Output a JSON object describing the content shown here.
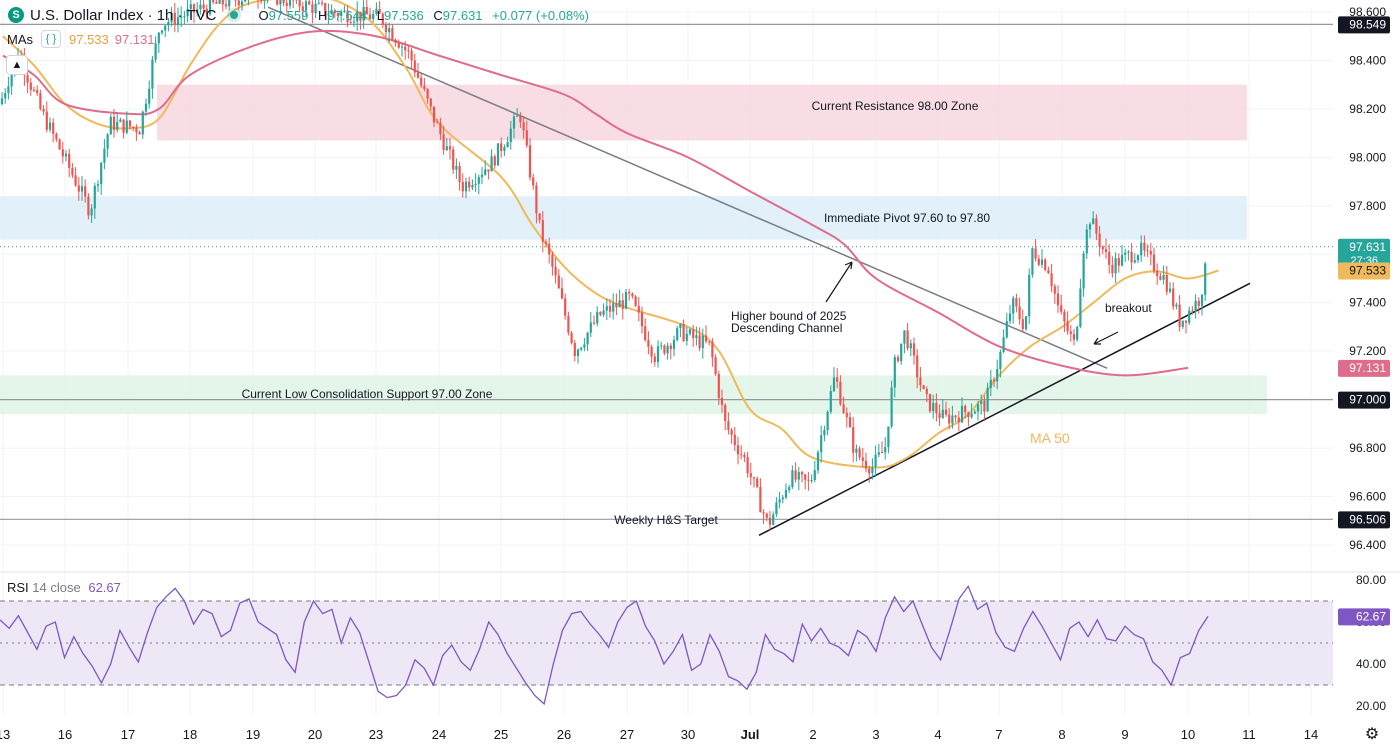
{
  "header": {
    "symbol_icon": "S",
    "title": "U.S. Dollar Index · 1h · TVC",
    "o_label": "O",
    "o_value": "97.559",
    "h_label": "H",
    "h_value": "97.644",
    "l_label": "L",
    "l_value": "97.536",
    "c_label": "C",
    "c_value": "97.631",
    "change": "+0.077 (+0.08%)"
  },
  "mas_legend": {
    "label": "MAs",
    "eye_icon": "eye-icon",
    "ma50_value": "97.533",
    "ma200_value": "97.131"
  },
  "collapse_icon": "chevron-up-icon",
  "rsi_legend": {
    "label": "RSI",
    "params": "14 close",
    "value": "62.67"
  },
  "settings_icon": "gear-icon",
  "colors": {
    "up": "#26a69a",
    "down": "#ef5350",
    "ma50": "#f0b95b",
    "ma200": "#e06c8c",
    "rsi": "#7e57c2",
    "trend": "#131722",
    "channel": "#787b86",
    "resistance_zone": "#f8d7df",
    "pivot_zone": "#dcedf8",
    "support_zone": "#dff3e6",
    "rsi_band": "#ede7f6",
    "label_dark": "#131722",
    "price_label": "#26a69a"
  },
  "chart_data": [
    {
      "type": "candlestick",
      "title": "U.S. Dollar Index · 1h · TVC",
      "x_tick_labels": [
        "13",
        "16",
        "17",
        "18",
        "19",
        "20",
        "23",
        "24",
        "25",
        "26",
        "27",
        "30",
        "Jul",
        "2",
        "3",
        "4",
        "7",
        "8",
        "9",
        "10",
        "11",
        "14"
      ],
      "y_tick_labels": [
        "96.400",
        "96.600",
        "96.800",
        "97.000",
        "97.200",
        "97.400",
        "97.600",
        "97.800",
        "98.000",
        "98.200",
        "98.400",
        "98.600"
      ],
      "ylim": [
        96.32,
        98.63
      ],
      "grid": true,
      "price_labels": [
        {
          "value": 98.549,
          "text": "98.549",
          "kind": "level"
        },
        {
          "value": 97.631,
          "text": "97.631",
          "countdown": "27:36",
          "kind": "last"
        },
        {
          "value": 97.533,
          "text": "97.533",
          "kind": "ma50"
        },
        {
          "value": 97.131,
          "text": "97.131",
          "kind": "ma200"
        },
        {
          "value": 97.0,
          "text": "97.000",
          "kind": "level"
        },
        {
          "value": 96.506,
          "text": "96.506",
          "kind": "level"
        }
      ],
      "horizontal_lines": [
        98.549,
        97.0,
        96.506
      ],
      "zones": [
        {
          "label": "Current Resistance 98.00 Zone",
          "from": 98.07,
          "to": 98.3,
          "x_from": "Jun 17",
          "x_to": "Jul 10",
          "color": "resistance_zone"
        },
        {
          "label": "Immediate Pivot 97.60 to 97.80",
          "from": 97.66,
          "to": 97.84,
          "x_from": "Jun 13",
          "x_to": "Jul 10",
          "color": "pivot_zone"
        },
        {
          "label": "Current Low Consolidation Support 97.00 Zone",
          "from": 96.94,
          "to": 97.1,
          "x_from": "Jun 13",
          "x_to": "Jul 11",
          "color": "support_zone"
        }
      ],
      "annotations": [
        {
          "text": "Weekly H&S Target",
          "value": 96.506,
          "anchor": "Jun 27"
        },
        {
          "text": "Higher bound of 2025",
          "text2": "Descending Channel",
          "value": 97.36,
          "anchor": "Jul 2"
        },
        {
          "text": "breakout",
          "value": 97.38,
          "anchor": "Jul 9"
        },
        {
          "text": "MA 50",
          "value": 96.84,
          "anchor": "Jul 8",
          "color": "ma50"
        }
      ],
      "trendlines": [
        {
          "name": "descending channel",
          "points": [
            [
              "Jun 18",
              98.62
            ],
            [
              "Jul 8",
              97.13
            ]
          ],
          "color": "channel"
        },
        {
          "name": "rising support",
          "points": [
            [
              "Jul 1",
              96.44
            ],
            [
              "Jul 11",
              97.48
            ]
          ],
          "color": "trend"
        }
      ],
      "series": [
        {
          "name": "MA 50",
          "color": "ma50",
          "points": [
            [
              "Jun 13",
              98.5
            ],
            [
              "Jun 13",
              98.38
            ],
            [
              "Jun 16",
              98.22
            ],
            [
              "Jun 16",
              98.14
            ],
            [
              "Jun 17",
              98.12
            ],
            [
              "Jun 17",
              98.16
            ],
            [
              "Jun 18",
              98.38
            ],
            [
              "Jun 18",
              98.56
            ],
            [
              "Jun 19",
              98.64
            ],
            [
              "Jun 20",
              98.66
            ],
            [
              "Jun 20",
              98.63
            ],
            [
              "Jun 23",
              98.54
            ],
            [
              "Jun 23",
              98.36
            ],
            [
              "Jun 24",
              98.14
            ],
            [
              "Jun 25",
              97.92
            ],
            [
              "Jun 25",
              97.72
            ],
            [
              "Jun 26",
              97.55
            ],
            [
              "Jun 26",
              97.44
            ],
            [
              "Jun 27",
              97.38
            ],
            [
              "Jun 30",
              97.3
            ],
            [
              "Jun 30",
              97.2
            ],
            [
              "Jul 1",
              96.96
            ],
            [
              "Jul 1",
              96.88
            ],
            [
              "Jul 2",
              96.76
            ],
            [
              "Jul 3",
              96.72
            ],
            [
              "Jul 3",
              96.76
            ],
            [
              "Jul 4",
              96.86
            ],
            [
              "Jul 4",
              96.94
            ],
            [
              "Jul 7",
              97.1
            ],
            [
              "Jul 7",
              97.22
            ],
            [
              "Jul 8",
              97.3
            ],
            [
              "Jul 8",
              97.4
            ],
            [
              "Jul 9",
              97.5
            ],
            [
              "Jul 9",
              97.53
            ],
            [
              "Jul 10",
              97.5
            ],
            [
              "Jul 10",
              97.533
            ]
          ]
        },
        {
          "name": "MA 200",
          "color": "ma200",
          "points": [
            [
              "Jun 13",
              98.42
            ],
            [
              "Jun 13",
              98.34
            ],
            [
              "Jun 16",
              98.22
            ],
            [
              "Jun 17",
              98.18
            ],
            [
              "Jun 17",
              98.2
            ],
            [
              "Jun 18",
              98.34
            ],
            [
              "Jun 19",
              98.46
            ],
            [
              "Jun 20",
              98.52
            ],
            [
              "Jun 23",
              98.5
            ],
            [
              "Jun 24",
              98.42
            ],
            [
              "Jun 25",
              98.34
            ],
            [
              "Jun 26",
              98.26
            ],
            [
              "Jun 26",
              98.18
            ],
            [
              "Jun 27",
              98.1
            ],
            [
              "Jun 30",
              98.0
            ],
            [
              "Jul 1",
              97.86
            ],
            [
              "Jul 2",
              97.72
            ],
            [
              "Jul 2",
              97.64
            ],
            [
              "Jul 3",
              97.5
            ],
            [
              "Jul 4",
              97.36
            ],
            [
              "Jul 7",
              97.22
            ],
            [
              "Jul 8",
              97.14
            ],
            [
              "Jul 9",
              97.1
            ],
            [
              "Jul 10",
              97.131
            ]
          ]
        }
      ]
    },
    {
      "type": "line",
      "title": "RSI 14 close",
      "y_tick_labels": [
        "20.00",
        "40.00",
        "60.00",
        "80.00"
      ],
      "ylim": [
        17,
        83
      ],
      "bands": [
        30,
        50,
        70
      ],
      "last_value": 62.67,
      "series": [
        {
          "name": "RSI",
          "color": "rsi",
          "values": [
            61,
            57,
            63,
            55,
            47,
            58,
            60,
            43,
            53,
            45,
            39,
            31,
            40,
            56,
            48,
            41,
            55,
            67,
            72,
            76,
            70,
            59,
            66,
            64,
            53,
            56,
            69,
            71,
            60,
            57,
            54,
            42,
            36,
            60,
            70,
            64,
            66,
            50,
            62,
            55,
            41,
            27,
            24,
            25,
            30,
            42,
            38,
            30,
            44,
            49,
            41,
            37,
            47,
            60,
            54,
            45,
            38,
            31,
            25,
            21,
            40,
            56,
            64,
            65,
            59,
            54,
            48,
            60,
            67,
            70,
            58,
            51,
            40,
            46,
            54,
            37,
            40,
            54,
            46,
            34,
            32,
            28,
            36,
            54,
            47,
            45,
            41,
            59,
            51,
            57,
            50,
            48,
            44,
            56,
            53,
            46,
            62,
            72,
            65,
            70,
            59,
            48,
            42,
            56,
            71,
            77,
            66,
            69,
            55,
            48,
            46,
            57,
            65,
            58,
            50,
            42,
            57,
            60,
            53,
            61,
            52,
            51,
            58,
            54,
            52,
            41,
            37,
            30,
            43,
            45,
            56,
            62.67
          ]
        }
      ]
    }
  ]
}
